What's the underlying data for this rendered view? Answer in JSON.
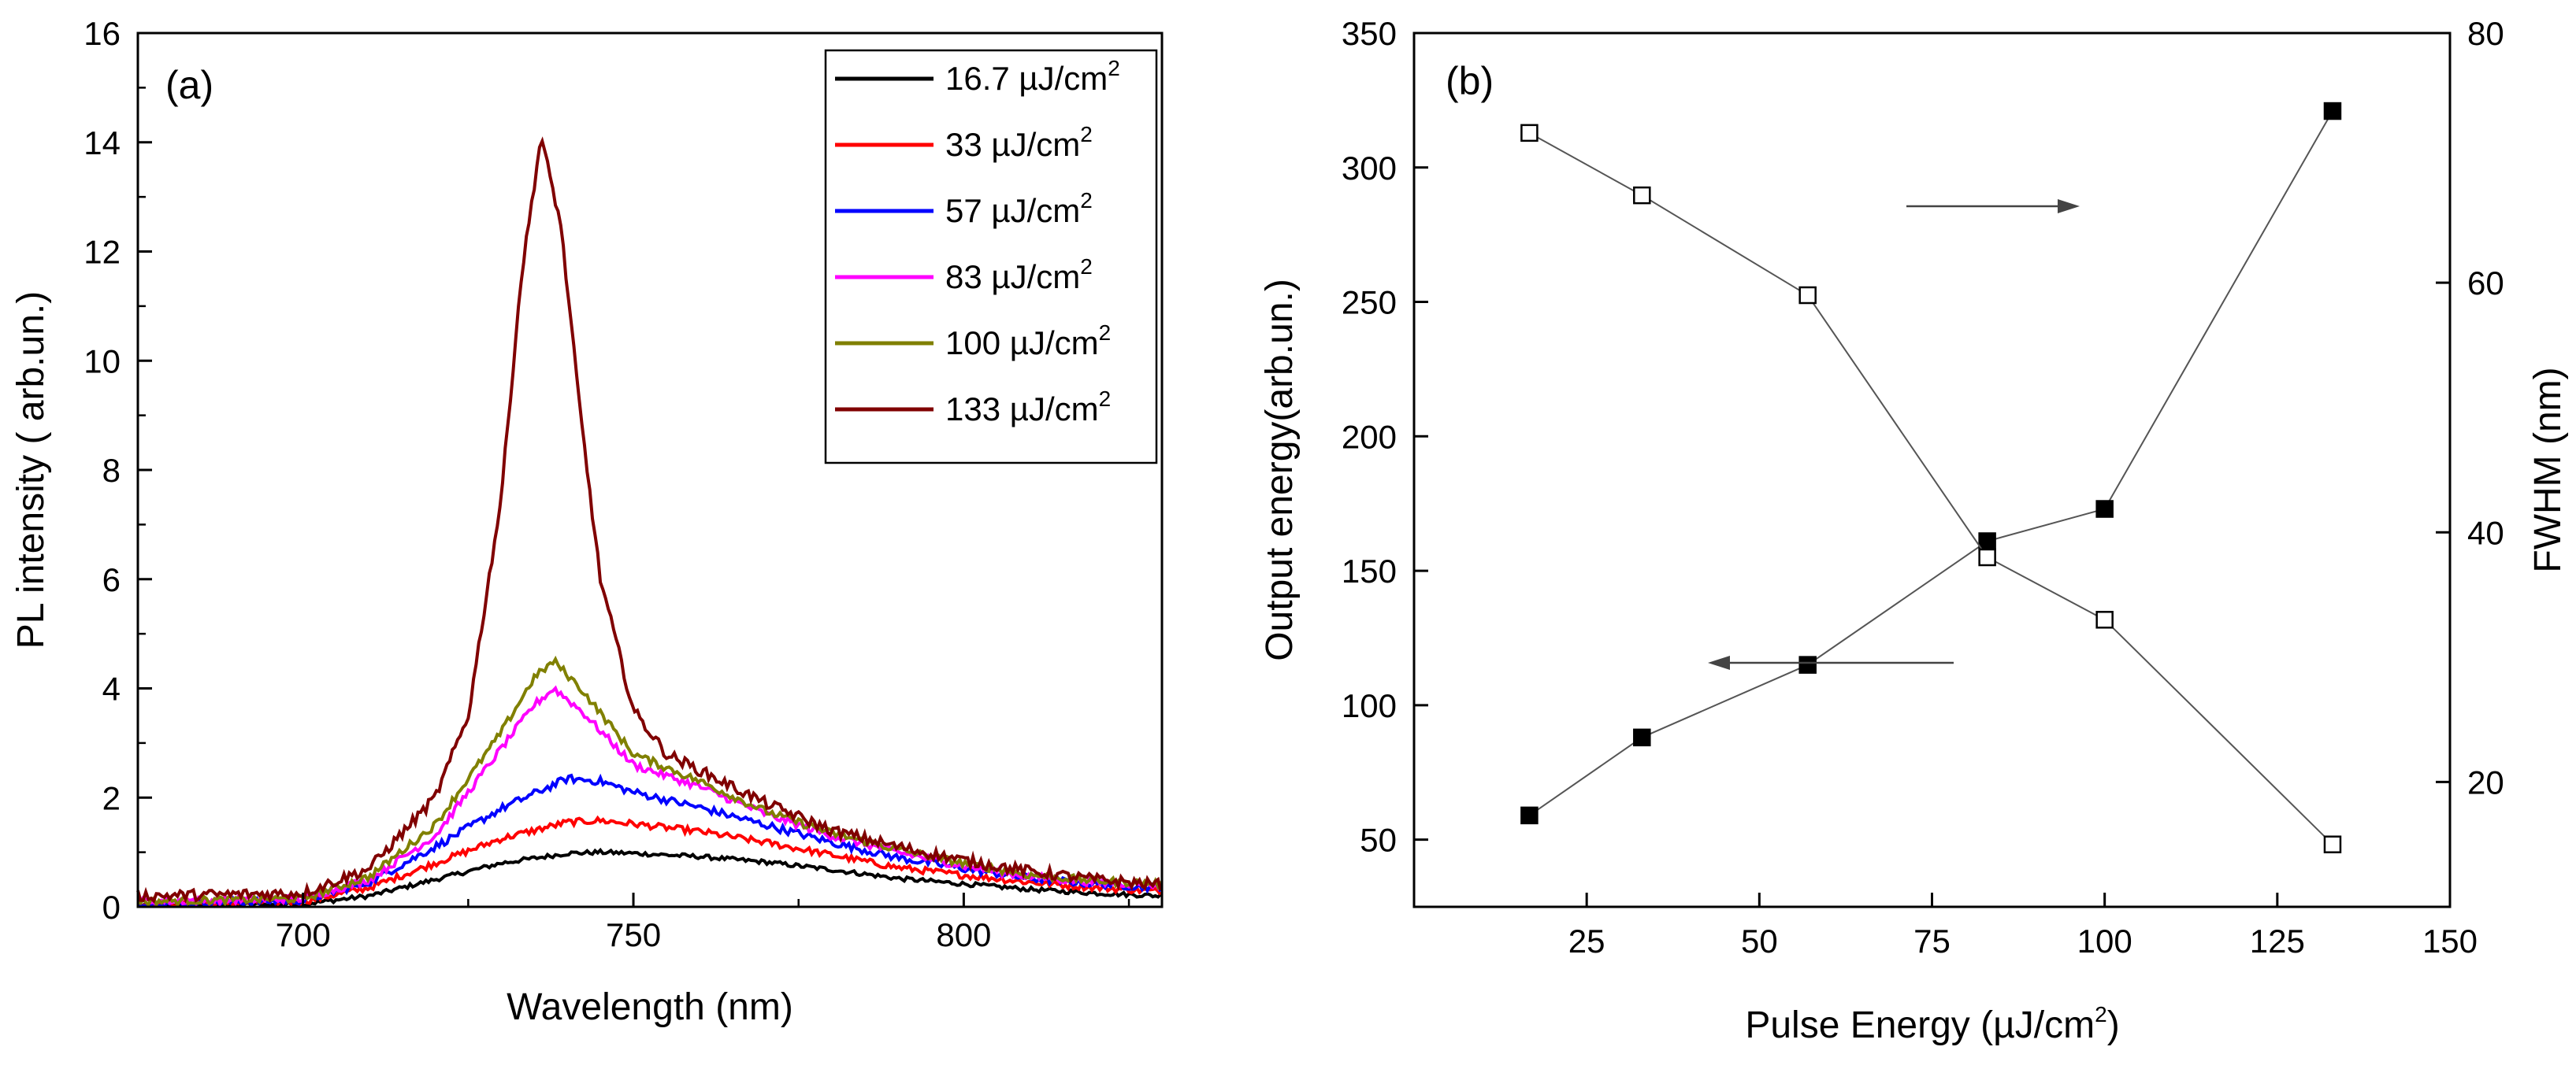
{
  "chart_data": [
    {
      "type": "line",
      "panel_label": "(a)",
      "xlabel": "Wavelength (nm)",
      "ylabel": "PL intensity ( arb.un.)",
      "xlim": [
        675,
        830
      ],
      "ylim": [
        0,
        16
      ],
      "x_ticks": [
        700,
        750,
        800
      ],
      "y_ticks": [
        0,
        2,
        4,
        6,
        8,
        10,
        12,
        14,
        16
      ],
      "legend_position": "top-right",
      "legend_unit_prefix": "µJ/cm",
      "legend_unit_exp": "2",
      "series": [
        {
          "name": "16.7",
          "color": "#000000",
          "peak_x": 745,
          "peak": 1.0,
          "baseline": 0.15,
          "width_left": 16,
          "width_right": 40,
          "noise": 0.04,
          "x": [
            675,
            700,
            710,
            720,
            730,
            740,
            745,
            750,
            760,
            770,
            780,
            790,
            800,
            810,
            820,
            830
          ],
          "values": [
            0.02,
            0.05,
            0.2,
            0.5,
            0.8,
            0.98,
            1.0,
            0.98,
            0.92,
            0.82,
            0.68,
            0.52,
            0.42,
            0.32,
            0.25,
            0.2
          ]
        },
        {
          "name": "33",
          "color": "#ff0000",
          "peak_x": 742,
          "peak": 1.6,
          "baseline": 0.15,
          "width_left": 15,
          "width_right": 38,
          "noise": 0.06,
          "x": [
            675,
            700,
            710,
            720,
            730,
            740,
            745,
            750,
            760,
            770,
            780,
            790,
            800,
            810,
            820,
            830
          ],
          "values": [
            0.05,
            0.1,
            0.35,
            0.8,
            1.25,
            1.55,
            1.58,
            1.52,
            1.38,
            1.18,
            0.95,
            0.72,
            0.58,
            0.45,
            0.35,
            0.28
          ]
        },
        {
          "name": "57",
          "color": "#0000ff",
          "peak_x": 740,
          "peak": 2.35,
          "baseline": 0.15,
          "width_left": 14,
          "width_right": 36,
          "noise": 0.07,
          "x": [
            675,
            700,
            710,
            720,
            730,
            740,
            745,
            750,
            760,
            770,
            780,
            790,
            800,
            810,
            820,
            830
          ],
          "values": [
            0.05,
            0.12,
            0.45,
            1.1,
            1.8,
            2.35,
            2.3,
            2.1,
            1.82,
            1.5,
            1.18,
            0.9,
            0.7,
            0.52,
            0.42,
            0.35
          ]
        },
        {
          "name": "83",
          "color": "#ff00ff",
          "peak_x": 738,
          "peak": 4.0,
          "baseline": 0.2,
          "width_left": 10,
          "width_right": 24,
          "noise": 0.07,
          "x": [
            675,
            700,
            710,
            720,
            730,
            735,
            738,
            742,
            750,
            760,
            770,
            780,
            790,
            800,
            810,
            820,
            830
          ],
          "values": [
            0.1,
            0.15,
            0.5,
            1.3,
            2.9,
            3.7,
            4.0,
            3.6,
            2.6,
            2.2,
            1.7,
            1.3,
            1.0,
            0.75,
            0.55,
            0.45,
            0.4
          ]
        },
        {
          "name": "100",
          "color": "#808000",
          "peak_x": 738,
          "peak": 4.5,
          "baseline": 0.2,
          "width_left": 10,
          "width_right": 24,
          "noise": 0.07,
          "x": [
            675,
            700,
            710,
            720,
            730,
            735,
            738,
            742,
            750,
            760,
            770,
            780,
            790,
            800,
            810,
            820,
            830
          ],
          "values": [
            0.1,
            0.15,
            0.55,
            1.5,
            3.2,
            4.2,
            4.5,
            4.0,
            2.8,
            2.3,
            1.75,
            1.35,
            1.05,
            0.8,
            0.58,
            0.48,
            0.42
          ]
        },
        {
          "name": "133",
          "color": "#800000",
          "peak_x": 736,
          "peak": 14.1,
          "baseline": 0.25,
          "width_left": 6,
          "width_right": 9,
          "noise": 0.1,
          "x": [
            675,
            700,
            710,
            720,
            725,
            730,
            733,
            736,
            739,
            742,
            745,
            750,
            755,
            760,
            770,
            780,
            790,
            800,
            810,
            820,
            830
          ],
          "values": [
            0.2,
            0.25,
            0.7,
            2.0,
            3.5,
            7.5,
            11.5,
            14.1,
            12.5,
            9.0,
            6.0,
            3.6,
            2.8,
            2.5,
            1.9,
            1.4,
            1.1,
            0.85,
            0.65,
            0.5,
            0.4
          ]
        }
      ]
    },
    {
      "type": "scatter",
      "panel_label": "(b)",
      "xlabel_prefix": "Pulse Energy (",
      "xlabel_unit": "µJ/cm",
      "xlabel_exp": "2",
      "xlabel_suffix": ")",
      "ylabel": "Output energy(arb.un.)",
      "y2label": "FWHM (nm)",
      "xlim": [
        0,
        150
      ],
      "ylim": [
        25,
        350
      ],
      "y2lim": [
        10,
        80
      ],
      "x_ticks": [
        25,
        50,
        75,
        100,
        125,
        150
      ],
      "y_ticks": [
        50,
        100,
        150,
        200,
        250,
        300,
        350
      ],
      "y2_ticks": [
        20,
        40,
        60,
        80
      ],
      "series": [
        {
          "name": "Output energy",
          "axis": "left",
          "marker": "filled-square",
          "x": [
            16.7,
            33,
            57,
            83,
            100,
            133
          ],
          "values": [
            59,
            88,
            115,
            161,
            173,
            321
          ]
        },
        {
          "name": "FWHM",
          "axis": "right",
          "marker": "open-square",
          "x": [
            16.7,
            33,
            57,
            83,
            100,
            133
          ],
          "values": [
            72,
            67,
            59,
            38,
            33,
            15
          ]
        }
      ],
      "annotations": [
        {
          "type": "arrow",
          "direction": "right",
          "refers_to": "FWHM"
        },
        {
          "type": "arrow",
          "direction": "left",
          "refers_to": "Output energy"
        }
      ]
    }
  ]
}
